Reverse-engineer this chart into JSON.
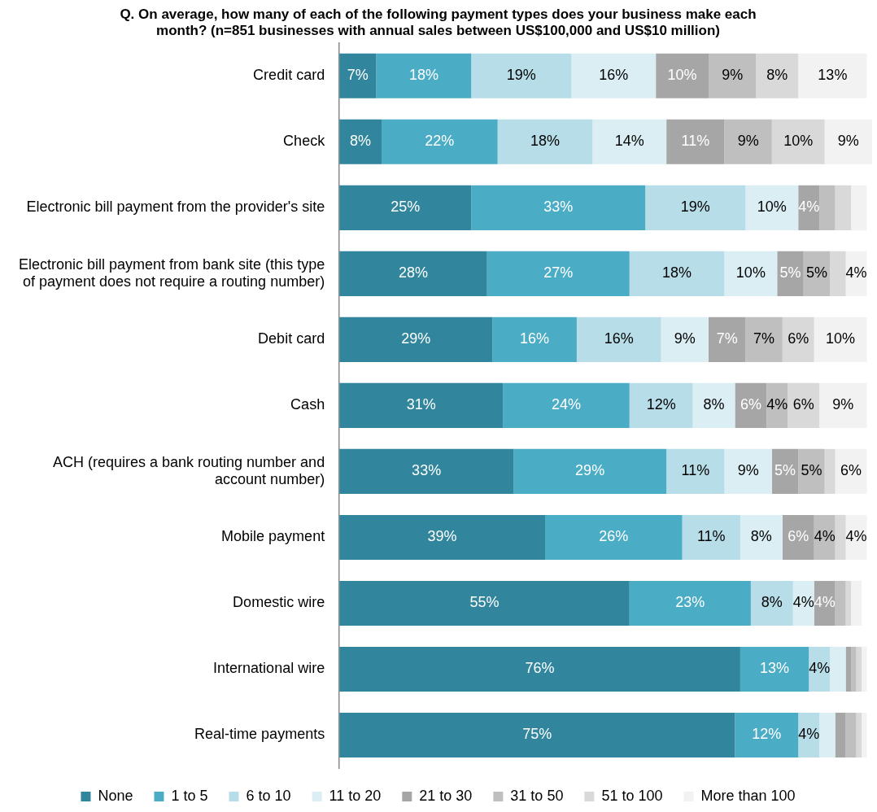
{
  "chart_data": {
    "type": "bar",
    "orientation": "horizontal",
    "stacked": true,
    "title": "Q. On average, how many of each of the following payment types does your business make each month? (n=851 businesses with annual sales between US$100,000 and US$10 million)",
    "categories": [
      "Credit card",
      "Check",
      "Electronic bill payment from the provider's site",
      "Electronic bill payment from bank site (this type of payment does not require a routing number)",
      "Debit card",
      "Cash",
      "ACH (requires a bank routing number and account number)",
      "Mobile payment",
      "Domestic wire",
      "International wire",
      "Real-time payments"
    ],
    "xlim": [
      0,
      101
    ],
    "tick_labels": "y",
    "grid": false,
    "legend": "bottom",
    "series": [
      {
        "name": "None",
        "color": "#31859c",
        "values": [
          7,
          8,
          25,
          28,
          29,
          31,
          33,
          39,
          55,
          76,
          75
        ],
        "value_labels": [
          "7%",
          "8%",
          "25%",
          "28%",
          "29%",
          "31%",
          "33%",
          "39%",
          "55%",
          "76%",
          "75%"
        ]
      },
      {
        "name": "1 to 5",
        "color": "#4bacc6",
        "values": [
          18,
          22,
          33,
          27,
          16,
          24,
          29,
          26,
          23,
          13,
          12
        ],
        "value_labels": [
          "18%",
          "22%",
          "33%",
          "27%",
          "16%",
          "24%",
          "29%",
          "26%",
          "23%",
          "13%",
          "12%"
        ]
      },
      {
        "name": "6 to 10",
        "color": "#b7dee8",
        "values": [
          19,
          18,
          19,
          18,
          16,
          12,
          11,
          11,
          8,
          4,
          4
        ],
        "value_labels": [
          "19%",
          "18%",
          "19%",
          "18%",
          "16%",
          "12%",
          "11%",
          "11%",
          "8%",
          "4%",
          "4%"
        ]
      },
      {
        "name": "11 to 20",
        "color": "#daeef3",
        "values": [
          16,
          14,
          10,
          10,
          9,
          8,
          9,
          8,
          4,
          3,
          3
        ],
        "value_labels": [
          "16%",
          "14%",
          "10%",
          "10%",
          "9%",
          "8%",
          "9%",
          "8%",
          "4%",
          null,
          null
        ]
      },
      {
        "name": "21 to 30",
        "color": "#a6a6a6",
        "values": [
          10,
          11,
          4,
          5,
          7,
          6,
          5,
          6,
          4,
          1,
          2
        ],
        "value_labels": [
          "10%",
          "11%",
          "4%",
          "5%",
          "7%",
          "6%",
          "5%",
          "6%",
          "4%",
          null,
          null
        ]
      },
      {
        "name": "31 to 50",
        "color": "#bfbfbf",
        "values": [
          9,
          9,
          3,
          5,
          7,
          4,
          5,
          4,
          2,
          1,
          2
        ],
        "value_labels": [
          "9%",
          "9%",
          null,
          "5%",
          "7%",
          "4%",
          "5%",
          "4%",
          null,
          null,
          null
        ]
      },
      {
        "name": "51 to 100",
        "color": "#d9d9d9",
        "values": [
          8,
          10,
          3,
          3,
          6,
          6,
          2,
          2,
          1,
          1,
          1
        ],
        "value_labels": [
          "8%",
          "10%",
          null,
          null,
          "6%",
          "6%",
          null,
          null,
          null,
          null,
          null
        ]
      },
      {
        "name": "More than 100",
        "color": "#f2f2f2",
        "values": [
          13,
          9,
          3,
          4,
          10,
          9,
          6,
          4,
          2,
          1,
          1
        ],
        "value_labels": [
          "13%",
          "9%",
          null,
          "4%",
          "10%",
          "9%",
          "6%",
          "4%",
          null,
          null,
          null
        ]
      }
    ]
  }
}
